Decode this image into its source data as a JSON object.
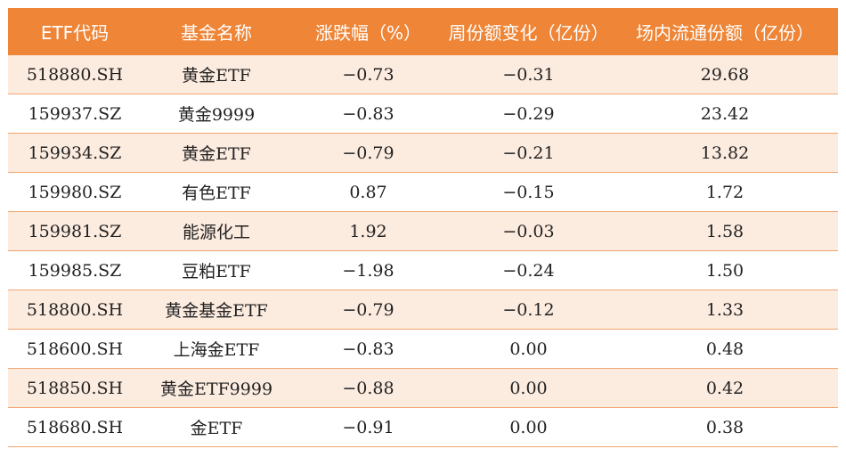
{
  "table": {
    "headers": [
      "ETF代码",
      "基金名称",
      "涨跌幅（%）",
      "周份额变化（亿份）",
      "场内流通份额（亿份）"
    ],
    "rows": [
      [
        "518880.SH",
        "黄金ETF",
        "−0.73",
        "−0.31",
        "29.68"
      ],
      [
        "159937.SZ",
        "黄金9999",
        "−0.83",
        "−0.29",
        "23.42"
      ],
      [
        "159934.SZ",
        "黄金ETF",
        "−0.79",
        "−0.21",
        "13.82"
      ],
      [
        "159980.SZ",
        "有色ETF",
        "0.87",
        "−0.15",
        "1.72"
      ],
      [
        "159981.SZ",
        "能源化工",
        "1.92",
        "−0.03",
        "1.58"
      ],
      [
        "159985.SZ",
        "豆粕ETF",
        "−1.98",
        "−0.24",
        "1.50"
      ],
      [
        "518800.SH",
        "黄金基金ETF",
        "−0.79",
        "−0.12",
        "1.33"
      ],
      [
        "518600.SH",
        "上海金ETF",
        "−0.83",
        "0.00",
        "0.48"
      ],
      [
        "518850.SH",
        "黄金ETF9999",
        "−0.88",
        "0.00",
        "0.42"
      ],
      [
        "518680.SH",
        "金ETF",
        "−0.91",
        "0.00",
        "0.38"
      ]
    ]
  },
  "colors": {
    "header_bg": "#ee8537",
    "header_text": "#ffffff",
    "stripe_bg": "#fcebdf",
    "row_border": "#f2a56f"
  }
}
